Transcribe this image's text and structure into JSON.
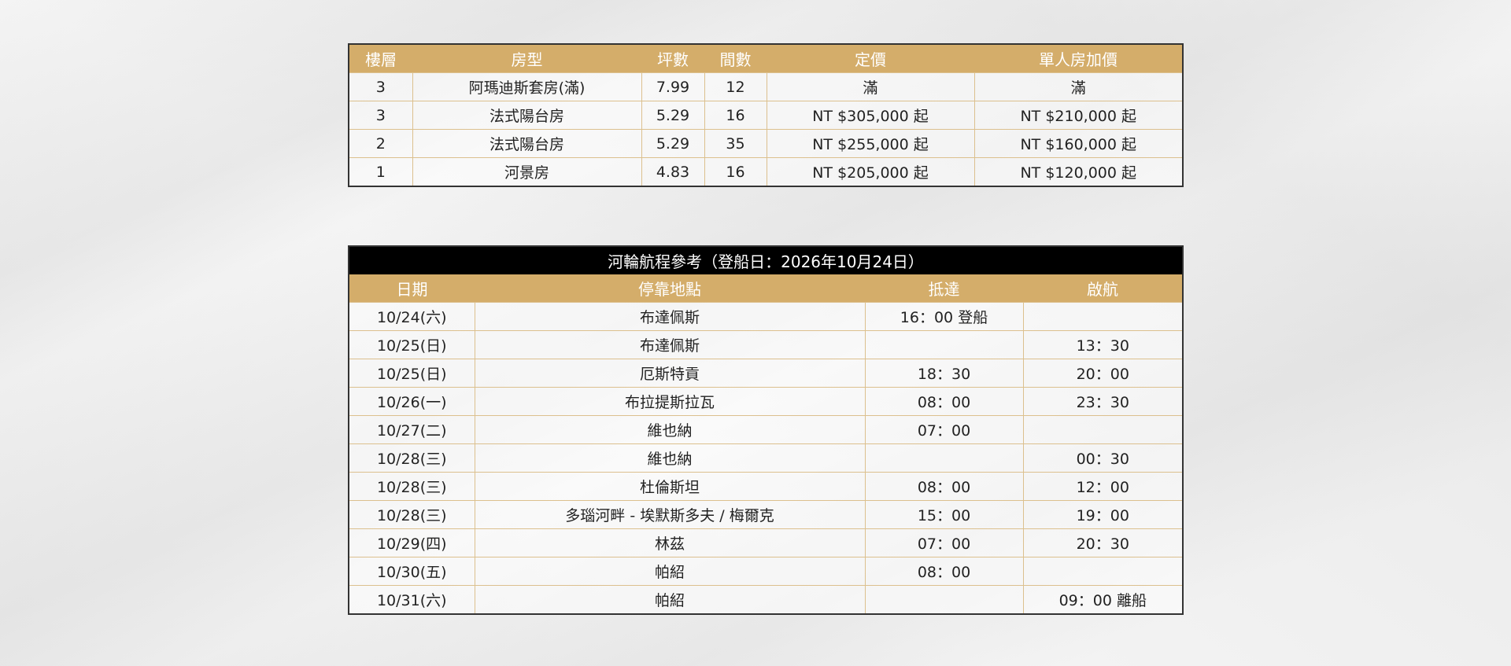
{
  "room_table": {
    "headers": [
      "樓層",
      "房型",
      "坪數",
      "間數",
      "定價",
      "單人房加價"
    ],
    "rows": [
      [
        "3",
        "阿瑪迪斯套房(滿)",
        "7.99",
        "12",
        "滿",
        "滿"
      ],
      [
        "3",
        "法式陽台房",
        "5.29",
        "16",
        "NT $305,000 起",
        "NT $210,000 起"
      ],
      [
        "2",
        "法式陽台房",
        "5.29",
        "35",
        "NT $255,000 起",
        "NT $160,000 起"
      ],
      [
        "1",
        "河景房",
        "4.83",
        "16",
        "NT $205,000 起",
        "NT $120,000 起"
      ]
    ]
  },
  "itinerary_table": {
    "title": "河輪航程參考（登船日：2026年10月24日）",
    "headers": [
      "日期",
      "停靠地點",
      "抵達",
      "啟航"
    ],
    "rows": [
      [
        "10/24(六)",
        "布達佩斯",
        "16：00 登船",
        ""
      ],
      [
        "10/25(日)",
        "布達佩斯",
        "",
        "13：30"
      ],
      [
        "10/25(日)",
        "厄斯特貢",
        "18：30",
        "20：00"
      ],
      [
        "10/26(一)",
        "布拉提斯拉瓦",
        "08：00",
        "23：30"
      ],
      [
        "10/27(二)",
        "維也納",
        "07：00",
        ""
      ],
      [
        "10/28(三)",
        "維也納",
        "",
        "00：30"
      ],
      [
        "10/28(三)",
        "杜倫斯坦",
        "08：00",
        "12：00"
      ],
      [
        "10/28(三)",
        "多瑙河畔 - 埃默斯多夫 / 梅爾克",
        "15：00",
        "19：00"
      ],
      [
        "10/29(四)",
        "林茲",
        "07：00",
        "20：30"
      ],
      [
        "10/30(五)",
        "帕紹",
        "08：00",
        ""
      ],
      [
        "10/31(六)",
        "帕紹",
        "",
        "09：00 離船"
      ]
    ]
  },
  "colors": {
    "header_bg": "#d4ad6a",
    "title_bg": "#000000",
    "grid": "#dcc08e"
  }
}
